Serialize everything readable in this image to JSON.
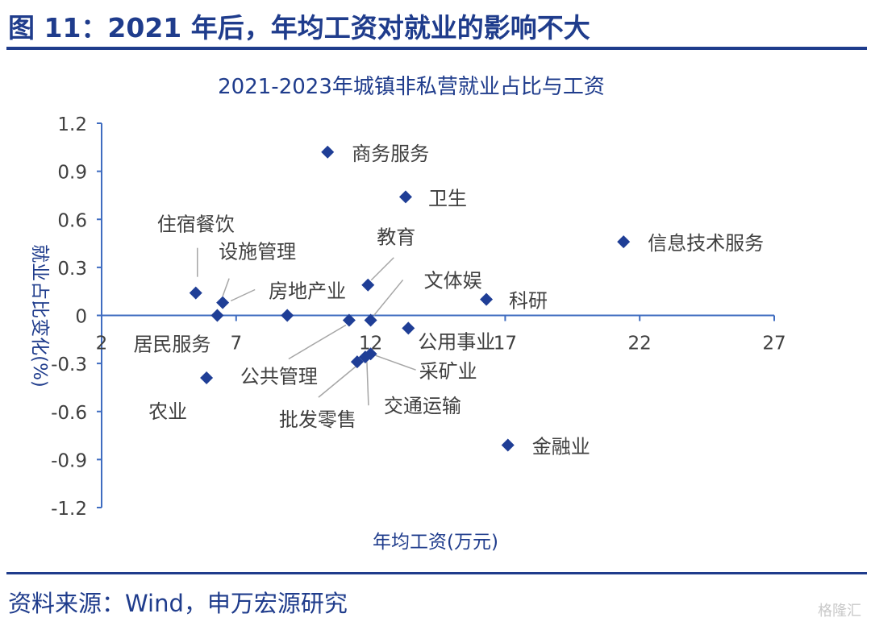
{
  "figure": {
    "title": "图 11：2021 年后，年均工资对就业的影响不大",
    "source": "资料来源：Wind，申万宏源研究",
    "watermark": "格隆汇"
  },
  "colors": {
    "accent": "#1f3c8c",
    "marker": "#1f3e96",
    "axis": "#3f6cc0",
    "text": "#404040"
  },
  "chart_data": {
    "type": "scatter",
    "title": "2021-2023年城镇非私营就业占比与工资",
    "xlabel": "年均工资(万元)",
    "ylabel": "就业占比变化(%)",
    "xlim": [
      2,
      27
    ],
    "ylim": [
      -1.2,
      1.2
    ],
    "xticks": [
      "2",
      "7",
      "12",
      "17",
      "22",
      "27"
    ],
    "yticks": [
      "1.2",
      "0.9",
      "0.6",
      "0.3",
      "0",
      "-0.3",
      "-0.6",
      "-0.9",
      "-1.2"
    ],
    "grid": false,
    "points": [
      {
        "label": "商务服务",
        "x": 10.4,
        "y": 1.02
      },
      {
        "label": "卫生",
        "x": 13.3,
        "y": 0.74
      },
      {
        "label": "信息技术服务",
        "x": 21.4,
        "y": 0.46
      },
      {
        "label": "住宿餐饮",
        "x": 5.5,
        "y": 0.14
      },
      {
        "label": "设施管理",
        "x": 6.5,
        "y": 0.08
      },
      {
        "label": "教育",
        "x": 11.9,
        "y": 0.19
      },
      {
        "label": "文体娱",
        "x": 12.0,
        "y": -0.03
      },
      {
        "label": "科研",
        "x": 16.3,
        "y": 0.1
      },
      {
        "label": "房地产业",
        "x": 8.9,
        "y": 0.0
      },
      {
        "label": "居民服务",
        "x": 6.3,
        "y": 0.0
      },
      {
        "label": "公共管理",
        "x": 11.2,
        "y": -0.03
      },
      {
        "label": "公用事业",
        "x": 13.4,
        "y": -0.08
      },
      {
        "label": "采矿业",
        "x": 12.0,
        "y": -0.24
      },
      {
        "label": "交通运输",
        "x": 11.8,
        "y": -0.26
      },
      {
        "label": "批发零售",
        "x": 11.5,
        "y": -0.29
      },
      {
        "label": "农业",
        "x": 5.9,
        "y": -0.39
      },
      {
        "label": "金融业",
        "x": 17.1,
        "y": -0.81
      }
    ]
  }
}
